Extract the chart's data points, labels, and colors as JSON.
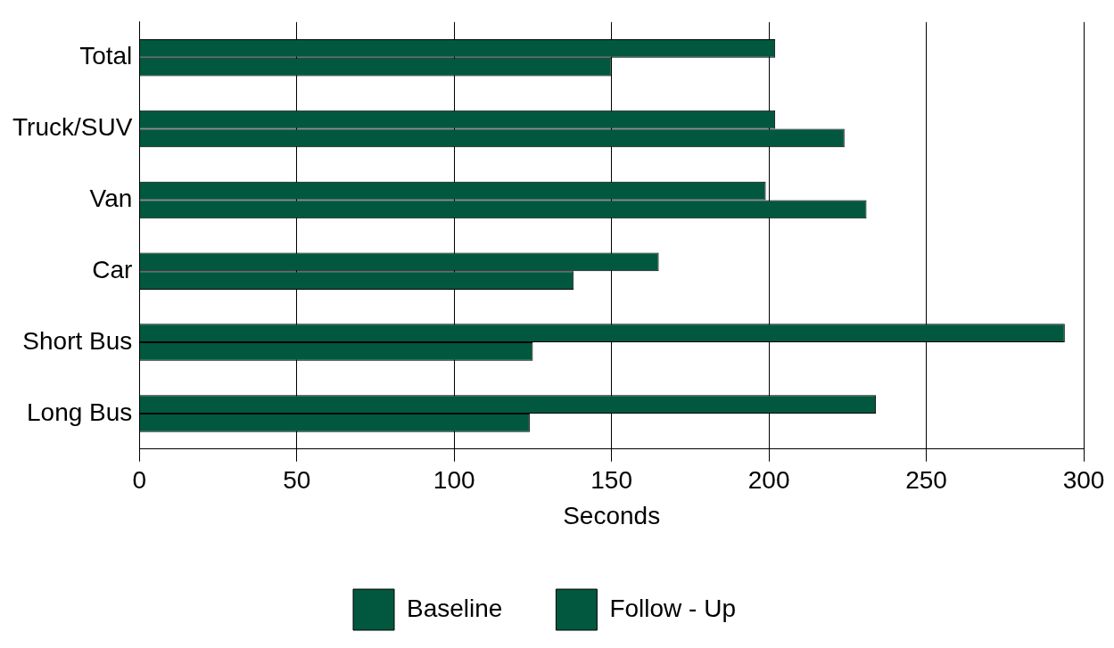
{
  "chart_data": {
    "type": "bar",
    "orientation": "horizontal",
    "xlabel": "Seconds",
    "categories": [
      "Total",
      "Truck/SUV",
      "Van",
      "Car",
      "Short Bus",
      "Long Bus"
    ],
    "series": [
      {
        "name": "Baseline",
        "color": "#02583f",
        "values": [
          202,
          202,
          199,
          165,
          294,
          234
        ]
      },
      {
        "name": "Follow - Up",
        "color": "#02583f",
        "values": [
          150,
          224,
          231,
          138,
          125,
          124
        ]
      }
    ],
    "xlim": [
      0,
      300
    ],
    "xticks": [
      0,
      50,
      100,
      150,
      200,
      250,
      300
    ],
    "grid": "x",
    "legend": "bottom"
  }
}
